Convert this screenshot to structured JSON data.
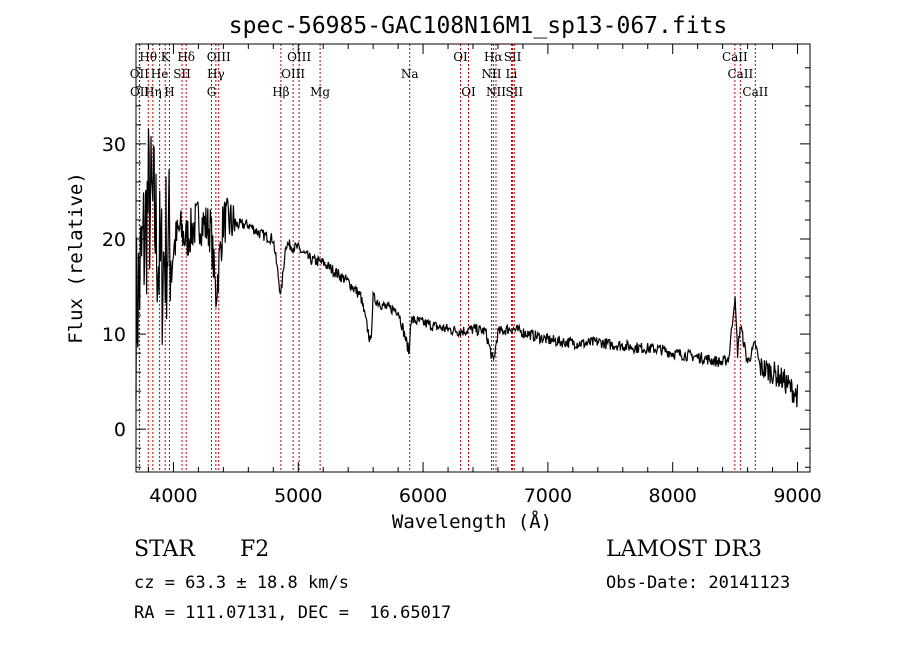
{
  "chart_data": {
    "type": "line",
    "title": "spec-56985-GAC108N16M1_sp13-067.fits",
    "xlabel": "Wavelength (Å)",
    "ylabel": "Flux (relative)",
    "xlim": [
      3700,
      9100
    ],
    "ylim": [
      -4.5,
      40.5
    ],
    "xticks": [
      4000,
      5000,
      6000,
      7000,
      8000,
      9000
    ],
    "yticks": [
      0,
      10,
      20,
      30
    ],
    "series": [
      {
        "name": "spectrum",
        "x": [
          3700,
          3750,
          3800,
          3850,
          3900,
          3950,
          4000,
          4050,
          4100,
          4200,
          4300,
          4340,
          4400,
          4500,
          4600,
          4700,
          4800,
          4861,
          4900,
          5000,
          5100,
          5200,
          5300,
          5400,
          5500,
          5580,
          5600,
          5700,
          5800,
          5890,
          5900,
          6000,
          6100,
          6200,
          6300,
          6400,
          6500,
          6563,
          6600,
          6700,
          6800,
          6900,
          7000,
          7100,
          7200,
          7300,
          7400,
          7500,
          7600,
          7700,
          7800,
          7900,
          8000,
          8100,
          8200,
          8300,
          8400,
          8450,
          8498,
          8520,
          8542,
          8600,
          8662,
          8700,
          8800,
          8900,
          9000
        ],
        "y": [
          12,
          18,
          24,
          22,
          16,
          20,
          19,
          21,
          20,
          22,
          21,
          14,
          22,
          21.5,
          21.5,
          20.5,
          20,
          14,
          19.5,
          19,
          17.8,
          17.5,
          16.5,
          15.5,
          14,
          9,
          13.8,
          12.8,
          12.5,
          8,
          11.5,
          11.2,
          10.8,
          10.5,
          10.3,
          10.5,
          10.3,
          7,
          10.2,
          10.6,
          10.2,
          9.8,
          9.4,
          9.2,
          9.1,
          9.0,
          9.2,
          8.9,
          8.8,
          8.6,
          8.5,
          8.4,
          8.0,
          7.8,
          7.6,
          7.3,
          7.0,
          7.5,
          14,
          8,
          11,
          7,
          9,
          6.5,
          6.0,
          5.0,
          3.5
        ]
      }
    ],
    "spectral_lines": [
      {
        "label": "Hθ",
        "wl": 3798,
        "row": 0
      },
      {
        "label": "OII",
        "wl": 3727,
        "row": 1
      },
      {
        "label": "OII",
        "wl": 3729,
        "row": 2
      },
      {
        "label": "He",
        "wl": 3889,
        "row": 1
      },
      {
        "label": "Hη",
        "wl": 3835,
        "row": 2
      },
      {
        "label": "K",
        "wl": 3934,
        "row": 0
      },
      {
        "label": "SII",
        "wl": 4069,
        "row": 1
      },
      {
        "label": "H",
        "wl": 3968,
        "row": 2
      },
      {
        "label": "Hδ",
        "wl": 4102,
        "row": 0
      },
      {
        "label": "OIII",
        "wl": 4363,
        "row": 0
      },
      {
        "label": "Hγ",
        "wl": 4340,
        "row": 1
      },
      {
        "label": "G",
        "wl": 4305,
        "row": 2
      },
      {
        "label": "Hβ",
        "wl": 4861,
        "row": 2
      },
      {
        "label": "OIII",
        "wl": 5007,
        "row": 0
      },
      {
        "label": "OIII",
        "wl": 4959,
        "row": 1
      },
      {
        "label": "Mg",
        "wl": 5175,
        "row": 2
      },
      {
        "label": "Na",
        "wl": 5893,
        "row": 1
      },
      {
        "label": "OI",
        "wl": 6300,
        "row": 0
      },
      {
        "label": "OI",
        "wl": 6364,
        "row": 2
      },
      {
        "label": "Hα",
        "wl": 6563,
        "row": 0
      },
      {
        "label": "NII",
        "wl": 6548,
        "row": 1
      },
      {
        "label": "NII",
        "wl": 6584,
        "row": 2
      },
      {
        "label": "SII",
        "wl": 6717,
        "row": 0
      },
      {
        "label": "Li",
        "wl": 6708,
        "row": 1
      },
      {
        "label": "SII",
        "wl": 6731,
        "row": 2
      },
      {
        "label": "CaII",
        "wl": 8498,
        "row": 0
      },
      {
        "label": "CaII",
        "wl": 8542,
        "row": 1
      },
      {
        "label": "CaII",
        "wl": 8662,
        "row": 2
      }
    ]
  },
  "info": {
    "object_class": "STAR",
    "subclass": "F2",
    "survey": "LAMOST DR3",
    "redshift": "cz = 63.3 ± 18.8 km/s",
    "obs_date": "Obs-Date: 20141123",
    "coords": "RA = 111.07131, DEC =  16.65017"
  }
}
